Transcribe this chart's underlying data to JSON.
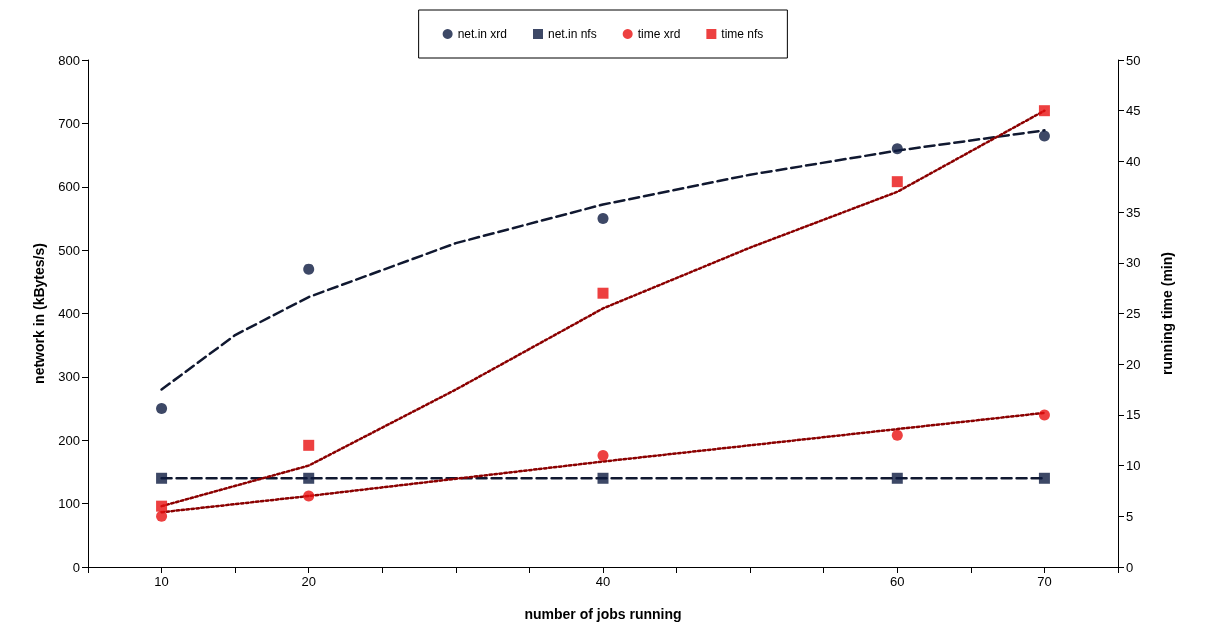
{
  "chart_data": {
    "type": "scatter",
    "xlabel": "number of jobs running",
    "ylabel": "network in (kBytes/s)",
    "y2label": "running time (min)",
    "xlim": [
      5,
      75
    ],
    "xticks": [
      {
        "value": 5,
        "label": null
      },
      10,
      {
        "value": 15,
        "label": null
      },
      20,
      {
        "value": 25,
        "label": null
      },
      {
        "value": 30,
        "label": null
      },
      {
        "value": 35,
        "label": null
      },
      40,
      {
        "value": 45,
        "label": null
      },
      {
        "value": 50,
        "label": null
      },
      {
        "value": 55,
        "label": null
      },
      60,
      {
        "value": 65,
        "label": null
      },
      70,
      {
        "value": 75,
        "label": null
      }
    ],
    "ylim": [
      0,
      800
    ],
    "yticks": [
      0,
      100,
      200,
      300,
      400,
      500,
      600,
      700,
      800
    ],
    "y2lim": [
      0,
      50
    ],
    "y2ticks": [
      0,
      5,
      10,
      15,
      20,
      25,
      30,
      35,
      40,
      45,
      50
    ],
    "grid": false,
    "legend": "top",
    "series": [
      {
        "name": "net.in xrd",
        "color": "#0d1a40",
        "marker": "circle",
        "x": [
          10,
          20,
          40,
          60,
          70
        ],
        "values": [
          250,
          470,
          550,
          660,
          680
        ]
      },
      {
        "name": "net.in nfs",
        "color": "#0d1a40",
        "marker": "square",
        "x": [
          10,
          20,
          40,
          60,
          70
        ],
        "values": [
          140,
          140,
          140,
          140,
          140
        ]
      },
      {
        "name": "time xrd",
        "color": "#e81010",
        "marker": "circle",
        "axis": "y2",
        "x": [
          10,
          20,
          40,
          60,
          70
        ],
        "values": [
          5,
          7,
          11,
          13,
          15
        ]
      },
      {
        "name": "time nfs",
        "color": "#e81010",
        "marker": "square",
        "axis": "y2",
        "x": [
          10,
          20,
          40,
          60,
          70
        ],
        "values": [
          6,
          12,
          27,
          38,
          45
        ]
      },
      {
        "type": "line",
        "color": "#101830",
        "line_style": "dashed",
        "marker": "none",
        "x": [
          10,
          15,
          20,
          30,
          40,
          50,
          60,
          70
        ],
        "values": [
          280,
          366,
          426,
          511,
          572,
          619,
          657,
          689
        ]
      },
      {
        "type": "line",
        "color": "#101830",
        "line_style": "dashed",
        "marker": "none",
        "x": [
          10,
          70
        ],
        "values": [
          140,
          140
        ]
      },
      {
        "type": "line",
        "color": "#8b0000",
        "line_style": "dotted",
        "marker": "none",
        "axis": "y2",
        "x": [
          10,
          20,
          40,
          60,
          70
        ],
        "values": [
          5.4,
          7.0,
          10.4,
          13.6,
          15.2
        ]
      },
      {
        "type": "line",
        "color": "#8b0000",
        "line_style": "dotted",
        "marker": "none",
        "axis": "y2",
        "x": [
          10,
          20,
          30,
          40,
          50,
          60,
          70
        ],
        "values": [
          6,
          10,
          17.5,
          25.5,
          31.5,
          37,
          45
        ]
      }
    ]
  }
}
